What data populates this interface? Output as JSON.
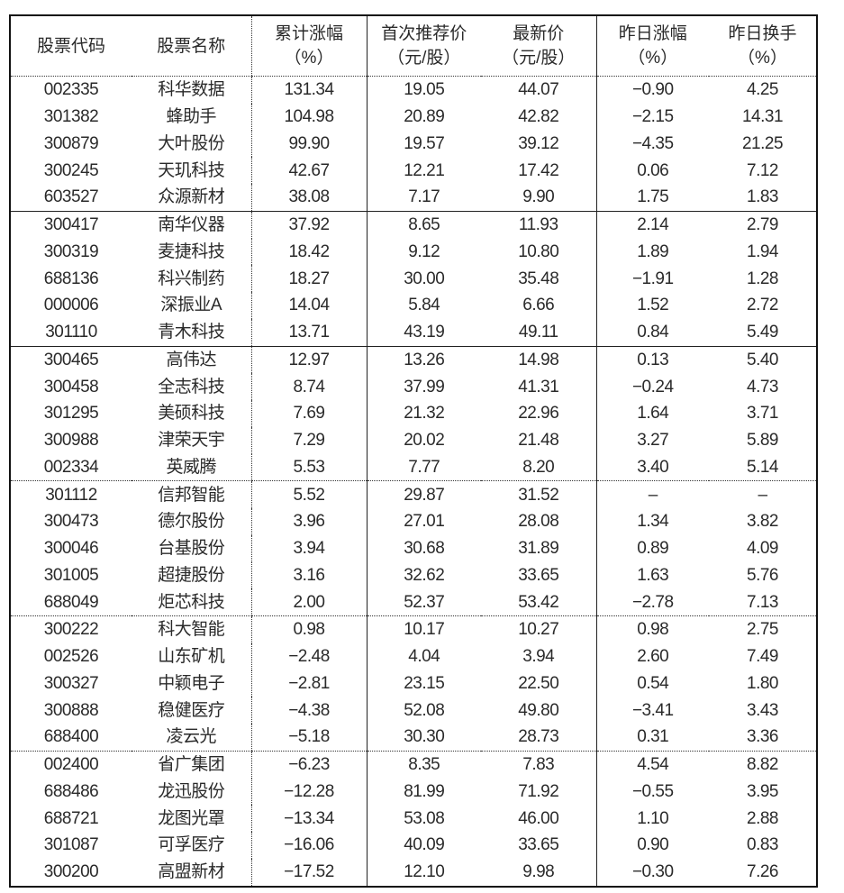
{
  "headers": [
    {
      "line1": "股票代码",
      "line2": ""
    },
    {
      "line1": "股票名称",
      "line2": ""
    },
    {
      "line1": "累计涨幅",
      "line2": "（%）"
    },
    {
      "line1": "首次推荐价",
      "line2": "（元/股）"
    },
    {
      "line1": "最新价",
      "line2": "（元/股）"
    },
    {
      "line1": "昨日涨幅",
      "line2": "（%）"
    },
    {
      "line1": "昨日换手",
      "line2": "（%）"
    }
  ],
  "rows": [
    [
      "002335",
      "科华数据",
      "131.34",
      "19.05",
      "44.07",
      "−0.90",
      "4.25"
    ],
    [
      "301382",
      "蜂助手",
      "104.98",
      "20.89",
      "42.82",
      "−2.15",
      "14.31"
    ],
    [
      "300879",
      "大叶股份",
      "99.90",
      "19.57",
      "39.12",
      "−4.35",
      "21.25"
    ],
    [
      "300245",
      "天玑科技",
      "42.67",
      "12.21",
      "17.42",
      "0.06",
      "7.12"
    ],
    [
      "603527",
      "众源新材",
      "38.08",
      "7.17",
      "9.90",
      "1.75",
      "1.83"
    ],
    [
      "300417",
      "南华仪器",
      "37.92",
      "8.65",
      "11.93",
      "2.14",
      "2.79"
    ],
    [
      "300319",
      "麦捷科技",
      "18.42",
      "9.12",
      "10.80",
      "1.89",
      "1.94"
    ],
    [
      "688136",
      "科兴制药",
      "18.27",
      "30.00",
      "35.48",
      "−1.91",
      "1.28"
    ],
    [
      "000006",
      "深振业A",
      "14.04",
      "5.84",
      "6.66",
      "1.52",
      "2.72"
    ],
    [
      "301110",
      "青木科技",
      "13.71",
      "43.19",
      "49.11",
      "0.84",
      "5.49"
    ],
    [
      "300465",
      "高伟达",
      "12.97",
      "13.26",
      "14.98",
      "0.13",
      "5.40"
    ],
    [
      "300458",
      "全志科技",
      "8.74",
      "37.99",
      "41.31",
      "−0.24",
      "4.73"
    ],
    [
      "301295",
      "美硕科技",
      "7.69",
      "21.32",
      "22.96",
      "1.64",
      "3.71"
    ],
    [
      "300988",
      "津荣天宇",
      "7.29",
      "20.02",
      "21.48",
      "3.27",
      "5.89"
    ],
    [
      "002334",
      "英威腾",
      "5.53",
      "7.77",
      "8.20",
      "3.40",
      "5.14"
    ],
    [
      "301112",
      "信邦智能",
      "5.52",
      "29.87",
      "31.52",
      "–",
      "–"
    ],
    [
      "300473",
      "德尔股份",
      "3.96",
      "27.01",
      "28.08",
      "1.34",
      "3.82"
    ],
    [
      "300046",
      "台基股份",
      "3.94",
      "30.68",
      "31.89",
      "0.89",
      "4.09"
    ],
    [
      "301005",
      "超捷股份",
      "3.16",
      "32.62",
      "33.65",
      "1.63",
      "5.76"
    ],
    [
      "688049",
      "炬芯科技",
      "2.00",
      "52.37",
      "53.42",
      "−2.78",
      "7.13"
    ],
    [
      "300222",
      "科大智能",
      "0.98",
      "10.17",
      "10.27",
      "0.98",
      "2.75"
    ],
    [
      "002526",
      "山东矿机",
      "−2.48",
      "4.04",
      "3.94",
      "2.60",
      "7.49"
    ],
    [
      "300327",
      "中颖电子",
      "−2.81",
      "23.15",
      "22.50",
      "0.54",
      "1.80"
    ],
    [
      "300888",
      "稳健医疗",
      "−4.38",
      "52.08",
      "49.80",
      "−3.41",
      "3.43"
    ],
    [
      "688400",
      "凌云光",
      "−5.18",
      "30.30",
      "28.73",
      "0.31",
      "3.36"
    ],
    [
      "002400",
      "省广集团",
      "−6.23",
      "8.35",
      "7.83",
      "4.54",
      "8.82"
    ],
    [
      "688486",
      "龙迅股份",
      "−12.28",
      "81.99",
      "71.92",
      "−0.55",
      "3.95"
    ],
    [
      "688721",
      "龙图光罩",
      "−13.34",
      "53.08",
      "46.00",
      "1.10",
      "2.88"
    ],
    [
      "301087",
      "可孚医疗",
      "−16.06",
      "40.09",
      "33.65",
      "0.90",
      "0.83"
    ],
    [
      "300200",
      "高盟新材",
      "−17.52",
      "12.10",
      "9.98",
      "−0.30",
      "7.26"
    ]
  ]
}
